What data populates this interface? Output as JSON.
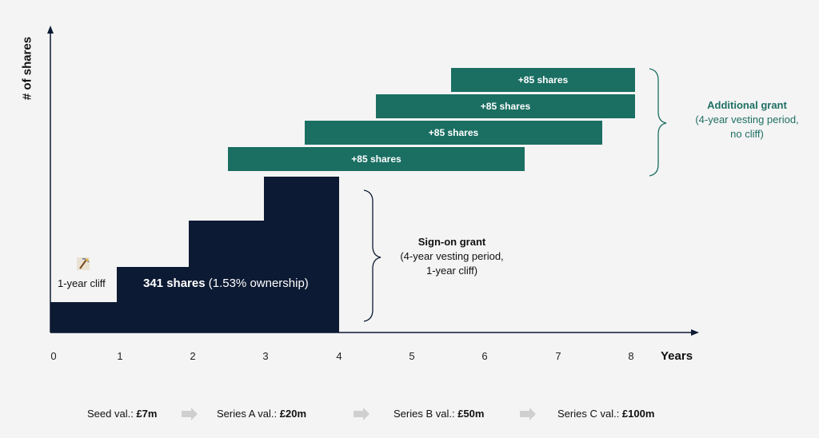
{
  "axes": {
    "y_label": "# of shares",
    "x_label": "Years",
    "x_ticks": [
      "0",
      "1",
      "2",
      "3",
      "4",
      "5",
      "6",
      "7",
      "8"
    ]
  },
  "sign_on": {
    "cliff_label": "1-year cliff",
    "shares_bold": "341 shares",
    "shares_rest": " (1.53% ownership)",
    "title": "Sign-on grant",
    "line1": "(4-year vesting period,",
    "line2": "1-year cliff)"
  },
  "additional": {
    "bar_label": "+85 shares",
    "title": "Additional grant",
    "line1": "(4-year vesting period,",
    "line2": "no cliff)"
  },
  "valuations": [
    {
      "prefix": "Seed val.: ",
      "value": "£7m"
    },
    {
      "prefix": "Series A val.: ",
      "value": "£20m"
    },
    {
      "prefix": "Series B val.: ",
      "value": "£50m"
    },
    {
      "prefix": "Series C val.: ",
      "value": "£100m"
    }
  ],
  "colors": {
    "navy": "#0d1a33",
    "teal": "#1a6e62",
    "teal_text": "#1f6f64",
    "arrow": "#cfcfcf"
  },
  "icons": [
    "pickaxe-icon",
    "right-arrow-icon"
  ]
}
